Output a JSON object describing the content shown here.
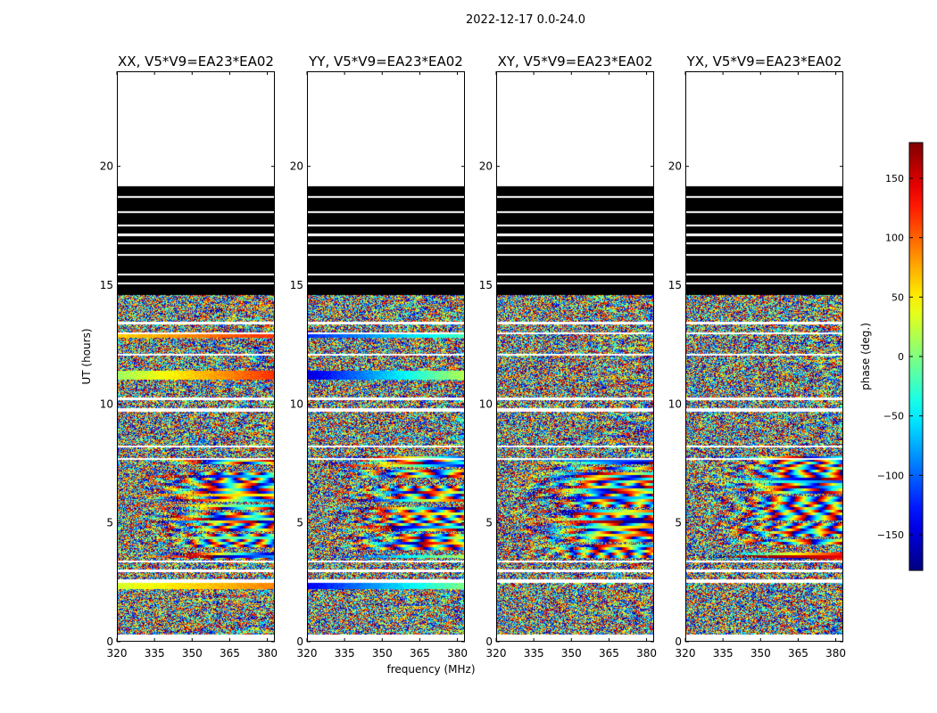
{
  "figure": {
    "suptitle": "2022-12-17 0.0-24.0",
    "xlabel": "frequency (MHz)",
    "ylabel": "UT (hours)",
    "colorbar_label": "phase (deg.)"
  },
  "chart_data": {
    "type": "heatmap",
    "colormap": "jet",
    "panels": [
      {
        "title": "XX, V5*V9=EA23*EA02",
        "pol": "XX"
      },
      {
        "title": "YY, V5*V9=EA23*EA02",
        "pol": "YY"
      },
      {
        "title": "XY, V5*V9=EA23*EA02",
        "pol": "XY"
      },
      {
        "title": "YX, V5*V9=EA23*EA02",
        "pol": "YX"
      }
    ],
    "x": {
      "min": 320,
      "max": 383,
      "ticks": [
        320,
        335,
        350,
        365,
        380
      ]
    },
    "y": {
      "min": 0,
      "max": 24,
      "ticks": [
        0,
        5,
        10,
        15,
        20
      ]
    },
    "colorbar": {
      "min": -180,
      "max": 180,
      "ticks": [
        -150,
        -100,
        -50,
        0,
        50,
        100,
        150
      ]
    },
    "time_ranges_hours": {
      "phase_data": [
        [
          0.3,
          14.6
        ]
      ],
      "flagged_black": [
        [
          14.6,
          19.2
        ]
      ],
      "no_data": [
        [
          19.2,
          24.0
        ]
      ]
    },
    "gap_rows_hours": [
      [
        2.5,
        2.65
      ],
      [
        2.95,
        3.05
      ],
      [
        3.35,
        3.42
      ],
      [
        7.65,
        7.75
      ],
      [
        8.2,
        8.28
      ],
      [
        9.7,
        9.85
      ],
      [
        10.2,
        10.28
      ],
      [
        12.05,
        12.12
      ],
      [
        12.95,
        13.05
      ],
      [
        13.38,
        13.48
      ],
      [
        15.05,
        15.12
      ],
      [
        15.45,
        15.52
      ],
      [
        16.25,
        16.35
      ],
      [
        16.75,
        16.82
      ],
      [
        17.1,
        17.18
      ],
      [
        17.5,
        17.58
      ],
      [
        18.05,
        18.12
      ],
      [
        18.7,
        18.78
      ]
    ],
    "smooth_bands": [
      {
        "pol": "XX",
        "t0": 2.25,
        "t1": 2.55,
        "v0": 30,
        "v1": 90
      },
      {
        "pol": "XX",
        "t0": 12.8,
        "t1": 13.0,
        "v0": 60,
        "v1": 120
      },
      {
        "pol": "XX",
        "t0": 11.05,
        "t1": 11.4,
        "v0": 10,
        "v1": 120
      },
      {
        "pol": "YY",
        "t0": 2.25,
        "t1": 2.55,
        "v0": -140,
        "v1": 0
      },
      {
        "pol": "YY",
        "t0": 12.8,
        "t1": 13.0,
        "v0": -120,
        "v1": -20
      },
      {
        "pol": "YY",
        "t0": 11.05,
        "t1": 11.4,
        "v0": -150,
        "v1": 20
      }
    ]
  }
}
